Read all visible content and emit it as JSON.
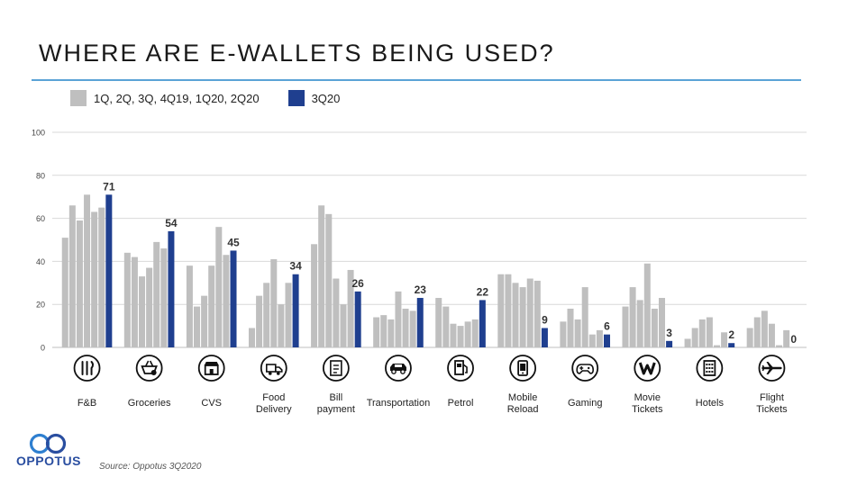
{
  "page": {
    "title": "WHERE ARE E-WALLETS BEING USED?",
    "source": "Source: Oppotus 3Q2020",
    "brand": "OPPOTUS"
  },
  "colors": {
    "history": "#bfbfbf",
    "current": "#1f3f8f",
    "rule": "#5aa3d6",
    "icon": "#111111"
  },
  "chart_data": {
    "type": "bar",
    "title": "WHERE ARE E-WALLETS BEING USED?",
    "ylim": [
      0,
      100
    ],
    "yticks": [
      0,
      20,
      40,
      60,
      80,
      100
    ],
    "grid": true,
    "legend_position": "top-left",
    "series_labels": [
      "1Q, 2Q, 3Q, 4Q19, 1Q20, 2Q20",
      "3Q20"
    ],
    "categories": [
      {
        "label": [
          "F&B"
        ],
        "icon": "cutlery-icon",
        "history": [
          51,
          66,
          59,
          71,
          63,
          65
        ],
        "current": 71
      },
      {
        "label": [
          "Groceries"
        ],
        "icon": "basket-icon",
        "history": [
          44,
          42,
          33,
          37,
          49,
          46
        ],
        "current": 54
      },
      {
        "label": [
          "CVS"
        ],
        "icon": "store-icon",
        "history": [
          38,
          19,
          24,
          38,
          56,
          43
        ],
        "current": 45
      },
      {
        "label": [
          "Food",
          "Delivery"
        ],
        "icon": "delivery-truck-icon",
        "history": [
          9,
          24,
          30,
          41,
          20,
          30
        ],
        "current": 34
      },
      {
        "label": [
          "Bill",
          "payment"
        ],
        "icon": "bill-icon",
        "history": [
          48,
          66,
          62,
          32,
          20,
          36
        ],
        "current": 26
      },
      {
        "label": [
          "Transportation"
        ],
        "icon": "car-icon",
        "history": [
          14,
          15,
          13,
          26,
          18,
          17
        ],
        "current": 23
      },
      {
        "label": [
          "Petrol"
        ],
        "icon": "fuel-pump-icon",
        "history": [
          23,
          19,
          11,
          10,
          12,
          13
        ],
        "current": 22
      },
      {
        "label": [
          "Mobile",
          "Reload"
        ],
        "icon": "mobile-phone-icon",
        "history": [
          34,
          34,
          30,
          28,
          32,
          31
        ],
        "current": 9
      },
      {
        "label": [
          "Gaming"
        ],
        "icon": "gamepad-icon",
        "history": [
          12,
          18,
          13,
          28,
          6,
          8
        ],
        "current": 6
      },
      {
        "label": [
          "Movie",
          "Tickets"
        ],
        "icon": "film-reel-icon",
        "history": [
          19,
          28,
          22,
          39,
          18,
          23
        ],
        "current": 3
      },
      {
        "label": [
          "Hotels"
        ],
        "icon": "hotel-building-icon",
        "history": [
          4,
          9,
          13,
          14,
          1,
          7
        ],
        "current": 2
      },
      {
        "label": [
          "Flight",
          "Tickets"
        ],
        "icon": "airplane-icon",
        "history": [
          9,
          14,
          17,
          11,
          1,
          8
        ],
        "current": 0
      }
    ]
  }
}
